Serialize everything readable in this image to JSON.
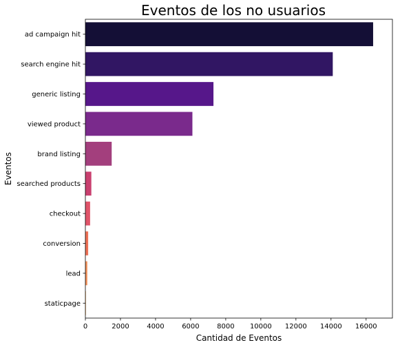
{
  "chart_data": {
    "type": "bar",
    "orientation": "horizontal",
    "title": "Eventos de los no usuarios",
    "xlabel": "Cantidad de Eventos",
    "ylabel": "Eventos",
    "categories": [
      "ad campaign hit",
      "search engine hit",
      "generic listing",
      "viewed product",
      "brand listing",
      "searched products",
      "checkout",
      "conversion",
      "lead",
      "staticpage"
    ],
    "values": [
      16400,
      14100,
      7300,
      6100,
      1500,
      340,
      270,
      160,
      110,
      30
    ],
    "colors": [
      "#140f36",
      "#311663",
      "#56178a",
      "#7a2a8c",
      "#a33f7d",
      "#c9406f",
      "#e05469",
      "#ed7156",
      "#f2915a",
      "#f5aa5c"
    ],
    "xlim": [
      0,
      17500
    ],
    "xticks": [
      0,
      2000,
      4000,
      6000,
      8000,
      10000,
      12000,
      14000,
      16000
    ],
    "grid": false,
    "legend": "none"
  }
}
